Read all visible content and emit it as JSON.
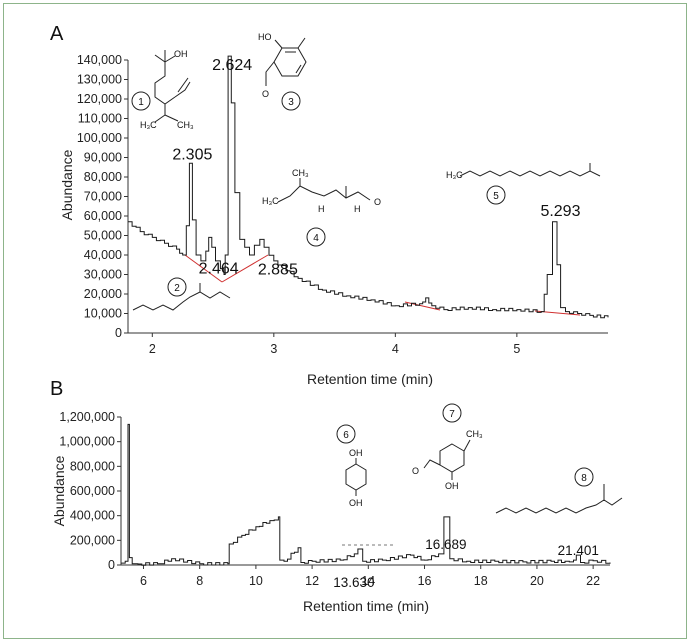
{
  "chart_data": [
    {
      "panel": "A",
      "type": "line",
      "xlabel": "Retention time (min)",
      "ylabel": "Abundance",
      "xlim": [
        1.8,
        5.75
      ],
      "ylim": [
        0,
        140000
      ],
      "xticks": [
        2,
        3,
        4,
        5
      ],
      "yticks": [
        0,
        10000,
        20000,
        30000,
        40000,
        50000,
        60000,
        70000,
        80000,
        90000,
        100000,
        110000,
        120000,
        130000,
        140000
      ],
      "ytick_labels": [
        "0",
        "10,000",
        "20,000",
        "30,000",
        "40,000",
        "50,000",
        "60,000",
        "70,000",
        "80,000",
        "90,000",
        "100,000",
        "110,000",
        "120,000",
        "130,000",
        "140,000"
      ],
      "series": [
        {
          "x": [
            1.8,
            1.9,
            2.0,
            2.1,
            2.2,
            2.25,
            2.28,
            2.305,
            2.33,
            2.36,
            2.4,
            2.44,
            2.464,
            2.49,
            2.52,
            2.56,
            2.59,
            2.6,
            2.624,
            2.65,
            2.68,
            2.72,
            2.76,
            2.8,
            2.84,
            2.885,
            2.92,
            3.0,
            3.2,
            3.4,
            3.6,
            3.8,
            4.0,
            4.2,
            4.25,
            4.3,
            4.4,
            4.6,
            4.8,
            5.0,
            5.2,
            5.25,
            5.293,
            5.33,
            5.36,
            5.4,
            5.5,
            5.6,
            5.75
          ],
          "y": [
            57000,
            52000,
            49000,
            46000,
            43000,
            40000,
            55000,
            87000,
            58000,
            40000,
            37000,
            42000,
            49000,
            44000,
            37000,
            33000,
            30000,
            40000,
            142000,
            118000,
            72000,
            48000,
            44000,
            40000,
            45000,
            48000,
            44000,
            37000,
            28000,
            22000,
            19000,
            17000,
            14000,
            15000,
            18000,
            14000,
            12000,
            13000,
            12000,
            12000,
            11000,
            30000,
            57000,
            35000,
            13000,
            11000,
            10000,
            9000,
            8000
          ]
        }
      ],
      "peaks": [
        {
          "x": 2.305,
          "label": "2.305"
        },
        {
          "x": 2.464,
          "label": "2.464"
        },
        {
          "x": 2.624,
          "label": "2.624"
        },
        {
          "x": 2.885,
          "label": "2.885"
        },
        {
          "x": 5.293,
          "label": "5.293"
        }
      ],
      "compound_numbers": [
        "1",
        "2",
        "3",
        "4",
        "5"
      ]
    },
    {
      "panel": "B",
      "type": "line",
      "xlabel": "Retention time (min)",
      "ylabel": "Abundance",
      "xlim": [
        5.2,
        22.6
      ],
      "ylim": [
        0,
        1200000
      ],
      "xticks": [
        6,
        8,
        10,
        12,
        14,
        16,
        18,
        20,
        22
      ],
      "yticks": [
        0,
        200000,
        400000,
        600000,
        800000,
        1000000,
        1200000
      ],
      "ytick_labels": [
        "0",
        "200,000",
        "400,000",
        "600,000",
        "800,000",
        "1,000,000",
        "1,200,000"
      ],
      "series": [
        {
          "x": [
            5.2,
            5.35,
            5.45,
            5.5,
            5.6,
            5.8,
            6.5,
            7.0,
            8.0,
            9.0,
            9.05,
            9.5,
            10.0,
            10.5,
            10.8,
            10.85,
            11.0,
            11.5,
            11.6,
            12.0,
            13.0,
            13.5,
            13.63,
            13.8,
            14.5,
            15.5,
            16.0,
            16.5,
            16.689,
            16.9,
            17.5,
            18.5,
            19.5,
            20.5,
            21.0,
            21.3,
            21.401,
            21.55,
            22.0,
            22.6
          ],
          "y": [
            15000,
            30000,
            1140000,
            60000,
            10000,
            8000,
            10000,
            50000,
            10000,
            10000,
            170000,
            240000,
            310000,
            360000,
            390000,
            40000,
            30000,
            140000,
            20000,
            30000,
            40000,
            90000,
            130000,
            30000,
            40000,
            80000,
            40000,
            90000,
            390000,
            50000,
            30000,
            30000,
            25000,
            30000,
            30000,
            40000,
            80000,
            20000,
            35000,
            20000
          ]
        }
      ],
      "peaks": [
        {
          "x": 13.63,
          "label": "13.630"
        },
        {
          "x": 16.689,
          "label": "16.689"
        },
        {
          "x": 21.401,
          "label": "21.401"
        }
      ],
      "compound_numbers": [
        "6",
        "7",
        "8"
      ]
    }
  ],
  "labels": {
    "panel_a": "A",
    "panel_b": "B"
  },
  "chem_text": {
    "oh1": "OH",
    "h3c1": "H₃C",
    "ch3_1": "CH₃",
    "ho3": "HO",
    "o3": "O",
    "h3c4": "H₃C",
    "ch3_4": "CH₃",
    "h4a": "H",
    "h4b": "H",
    "o4": "O",
    "h3c5": "H₃C",
    "oh6a": "OH",
    "oh6b": "OH",
    "ch3_7": "CH₃",
    "o7": "O",
    "oh7": "OH"
  },
  "colors": {
    "trace": "#1a1a1a",
    "baseline": "#d03030",
    "frame": "#8db48a"
  }
}
